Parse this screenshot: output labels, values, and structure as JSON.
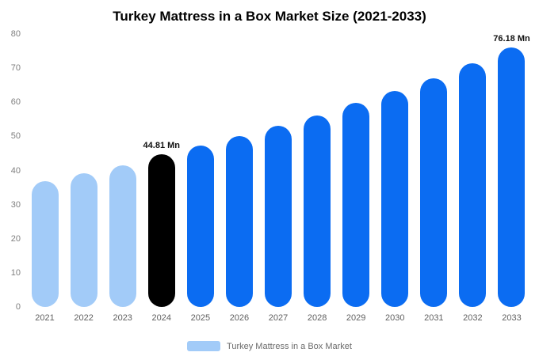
{
  "title": "Turkey Mattress in a Box Market Size (2021-2033)",
  "legend": {
    "label": "Turkey Mattress in a Box Market",
    "swatch_color": "#a2cbf8"
  },
  "colors": {
    "historical": "#a2cbf8",
    "base_year": "#000000",
    "forecast": "#0b6cf2"
  },
  "chart_data": {
    "type": "bar",
    "title": "Turkey Mattress in a Box Market Size (2021-2033)",
    "xlabel": "",
    "ylabel": "",
    "unit": "Mn",
    "categories": [
      "2021",
      "2022",
      "2023",
      "2024",
      "2025",
      "2026",
      "2027",
      "2028",
      "2029",
      "2030",
      "2031",
      "2032",
      "2033"
    ],
    "values": [
      36.8,
      39.2,
      41.6,
      44.81,
      47.2,
      50.1,
      53.2,
      56.2,
      59.8,
      63.3,
      67.0,
      71.5,
      76.18
    ],
    "bar_colors": [
      "#a2cbf8",
      "#a2cbf8",
      "#a2cbf8",
      "#000000",
      "#0b6cf2",
      "#0b6cf2",
      "#0b6cf2",
      "#0b6cf2",
      "#0b6cf2",
      "#0b6cf2",
      "#0b6cf2",
      "#0b6cf2",
      "#0b6cf2"
    ],
    "annotations": [
      {
        "index": 3,
        "text": "44.81 Mn"
      },
      {
        "index": 12,
        "text": "76.18 Mn"
      }
    ],
    "ylim": [
      0,
      80
    ],
    "yticks": [
      0,
      10,
      20,
      30,
      40,
      50,
      60,
      70,
      80
    ],
    "grid": false,
    "legend_position": "bottom",
    "legend_entries": [
      "Turkey Mattress in a Box Market"
    ]
  }
}
